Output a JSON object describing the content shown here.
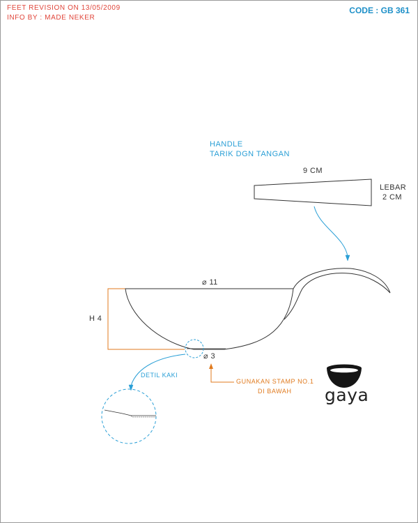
{
  "header": {
    "revision": "FEET REVISION ON 13/05/2009",
    "info": "INFO BY : MADE NEKER",
    "code": "CODE : GB 361"
  },
  "handle": {
    "title": "HANDLE",
    "subtitle": "TARIK DGN TANGAN",
    "length_label": "9 CM",
    "width_label_1": "LEBAR",
    "width_label_2": "2 CM"
  },
  "bowl": {
    "diameter_label": "⌀ 11",
    "height_label": "H 4",
    "base_label": "⌀ 3"
  },
  "details": {
    "foot_label": "DETIL KAKI",
    "stamp_line_1": "GUNAKAN STAMP NO.1",
    "stamp_line_2": "DI BAWAH"
  },
  "logo": {
    "text": "gaya"
  },
  "colors": {
    "red": "#e0453a",
    "blue": "#2a9fd6",
    "orange": "#e07a1e",
    "line": "#333333"
  }
}
